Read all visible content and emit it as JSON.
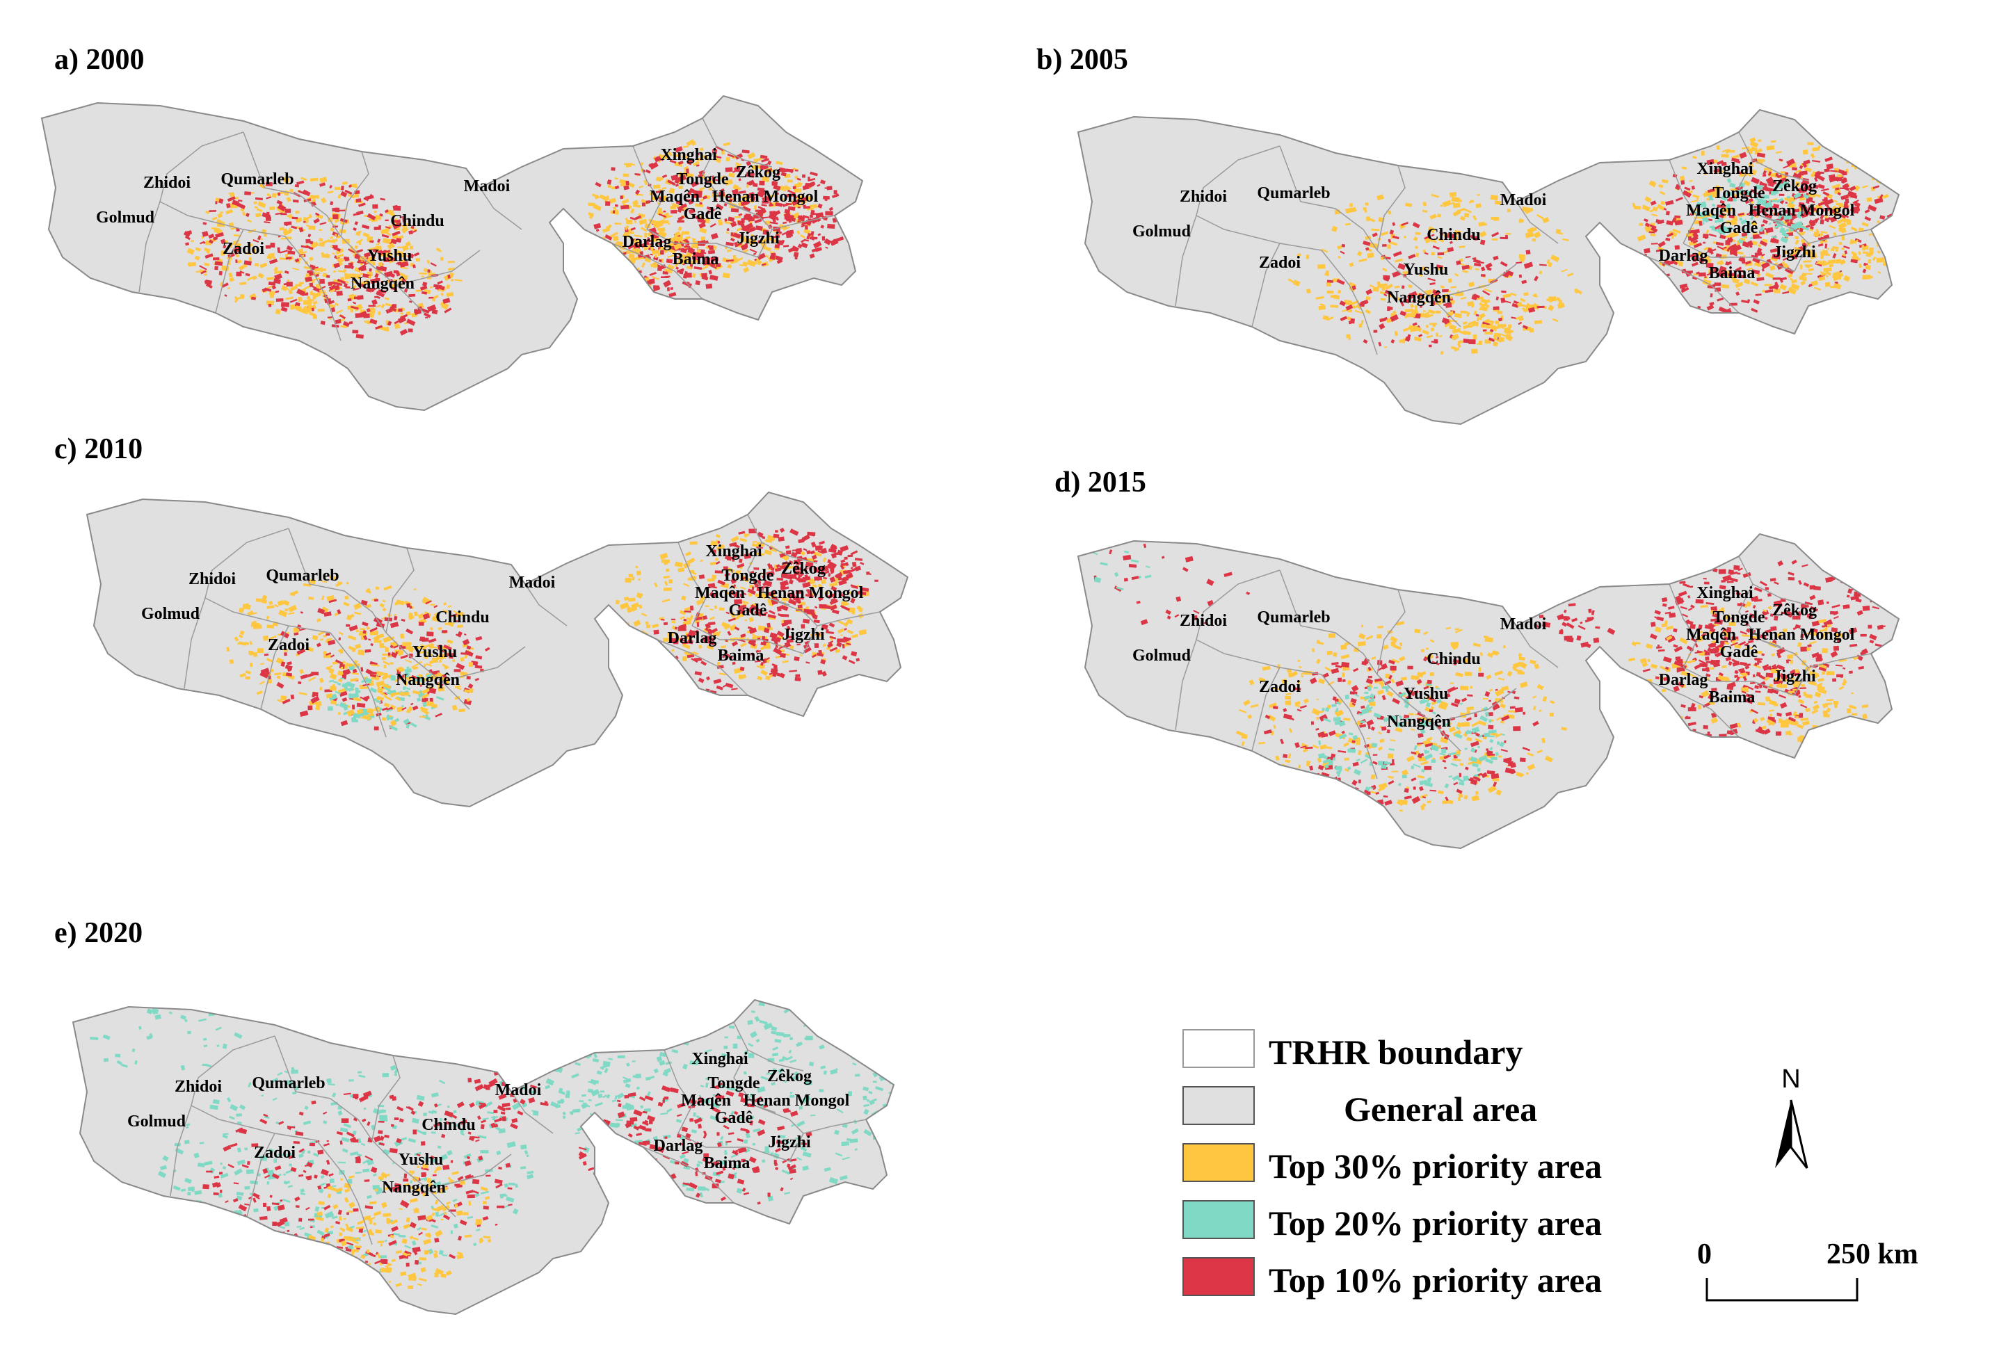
{
  "panels": [
    {
      "id": "a",
      "title": "a) 2000",
      "labels": [
        "Zhidoi",
        "Golmud",
        "Qumarleb",
        "Madoi",
        "Chindu",
        "Zadoi",
        "Yushu",
        "Nangqên",
        "Xinghai",
        "Tongde",
        "Zêkog",
        "Maqên",
        "Henan Mongol",
        "Gadê",
        "Darlag",
        "Jigzhi",
        "Baima"
      ]
    },
    {
      "id": "b",
      "title": "b) 2005",
      "labels": [
        "Zhidoi",
        "Golmud",
        "Qumarleb",
        "Madoi",
        "Chindu",
        "Zadoi",
        "Yushu",
        "Nangqên",
        "Xinghai",
        "Tongde",
        "Zêkog",
        "Maqên",
        "Henan Mongol",
        "Gadê",
        "Darlag",
        "Jigzhi",
        "Baima"
      ]
    },
    {
      "id": "c",
      "title": "c) 2010",
      "labels": [
        "Zhidoi",
        "Golmud",
        "Qumarleb",
        "Madoi",
        "Chindu",
        "Zadoi",
        "Yushu",
        "Nangqên",
        "Xinghai",
        "Tongde",
        "Zêkog",
        "Maqên",
        "Henan Mongol",
        "Gadê",
        "Darlag",
        "Jigzhi",
        "Baima"
      ]
    },
    {
      "id": "d",
      "title": "d) 2015",
      "labels": [
        "Zhidoi",
        "Golmud",
        "Qumarleb",
        "Madoi",
        "Chindu",
        "Zadoi",
        "Yushu",
        "Nangqên",
        "Xinghai",
        "Tongde",
        "Zêkog",
        "Maqên",
        "Henan Mongol",
        "Gadê",
        "Darlag",
        "Jigzhi",
        "Baima"
      ]
    },
    {
      "id": "e",
      "title": "e) 2020",
      "labels": [
        "Zhidoi",
        "Golmud",
        "Qumarleb",
        "Madoi",
        "Chindu",
        "Zadoi",
        "Yushu",
        "Nangqên",
        "Xinghai",
        "Tongde",
        "Zêkog",
        "Maqên",
        "Henan Mongol",
        "Gadê",
        "Darlag",
        "Jigzhi",
        "Baima"
      ]
    }
  ],
  "legend": {
    "items": [
      {
        "label": "TRHR boundary",
        "color": "#ffffff"
      },
      {
        "label": "General area",
        "color": "#e0e0e0"
      },
      {
        "label": "Top 30% priority area",
        "color": "#ffc640"
      },
      {
        "label": "Top 20% priority area",
        "color": "#7fd9c4"
      },
      {
        "label": "Top 10% priority area",
        "color": "#dc3545"
      }
    ]
  },
  "north_arrow": {
    "label": "N",
    "icon": "north-arrow-icon"
  },
  "scale": {
    "start": "0",
    "end": "250 km"
  },
  "colors": {
    "general": "#e0e0e0",
    "boundary": "#9a9a9a",
    "top30": "#ffc640",
    "top20": "#7fd9c4",
    "top10": "#dc3545"
  }
}
